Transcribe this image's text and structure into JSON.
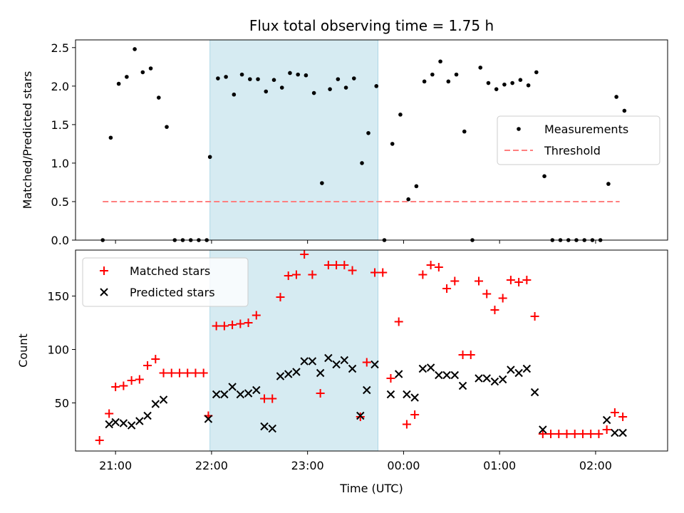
{
  "title": "Flux total observing time = 1.75 h",
  "colors": {
    "measurement": "#000000",
    "threshold": "#ff7f7f",
    "matched": "#ff0000",
    "predicted": "#000000",
    "shade": "#add8e6"
  },
  "chart_data": [
    {
      "type": "scatter",
      "ylabel": "Matched/Predicted stars",
      "xlabel": "",
      "ylim": [
        0,
        2.6
      ],
      "yticks": [
        "0.0",
        "0.5",
        "1.0",
        "1.5",
        "2.0",
        "2.5"
      ],
      "legend_placement": "center-right",
      "shaded_interval": [
        "21:59",
        "23:44"
      ],
      "threshold": {
        "name": "Threshold",
        "value": 0.5,
        "x_range": [
          "20:52",
          "02:15"
        ]
      },
      "series": [
        {
          "name": "Measurements",
          "marker": "dot",
          "points": [
            [
              "20:52",
              0.0
            ],
            [
              "20:57",
              1.33
            ],
            [
              "21:02",
              2.03
            ],
            [
              "21:07",
              2.12
            ],
            [
              "21:12",
              2.48
            ],
            [
              "21:17",
              2.18
            ],
            [
              "21:22",
              2.23
            ],
            [
              "21:27",
              1.85
            ],
            [
              "21:32",
              1.47
            ],
            [
              "21:37",
              0.0
            ],
            [
              "21:42",
              0.0
            ],
            [
              "21:47",
              0.0
            ],
            [
              "21:52",
              0.0
            ],
            [
              "21:57",
              0.0
            ],
            [
              "21:59",
              1.08
            ],
            [
              "22:04",
              2.1
            ],
            [
              "22:09",
              2.12
            ],
            [
              "22:14",
              1.89
            ],
            [
              "22:19",
              2.15
            ],
            [
              "22:24",
              2.09
            ],
            [
              "22:29",
              2.09
            ],
            [
              "22:34",
              1.93
            ],
            [
              "22:39",
              2.08
            ],
            [
              "22:44",
              1.98
            ],
            [
              "22:49",
              2.17
            ],
            [
              "22:54",
              2.15
            ],
            [
              "22:59",
              2.14
            ],
            [
              "23:04",
              1.91
            ],
            [
              "23:09",
              0.74
            ],
            [
              "23:14",
              1.96
            ],
            [
              "23:19",
              2.09
            ],
            [
              "23:24",
              1.98
            ],
            [
              "23:29",
              2.1
            ],
            [
              "23:34",
              1.0
            ],
            [
              "23:38",
              1.39
            ],
            [
              "23:43",
              2.0
            ],
            [
              "23:48",
              0.0
            ],
            [
              "23:53",
              1.25
            ],
            [
              "23:58",
              1.63
            ],
            [
              "00:03",
              0.53
            ],
            [
              "00:08",
              0.7
            ],
            [
              "00:13",
              2.06
            ],
            [
              "00:18",
              2.15
            ],
            [
              "00:23",
              2.32
            ],
            [
              "00:28",
              2.06
            ],
            [
              "00:33",
              2.15
            ],
            [
              "00:38",
              1.41
            ],
            [
              "00:43",
              0.0
            ],
            [
              "00:48",
              2.24
            ],
            [
              "00:53",
              2.04
            ],
            [
              "00:58",
              1.96
            ],
            [
              "01:03",
              2.02
            ],
            [
              "01:08",
              2.04
            ],
            [
              "01:13",
              2.08
            ],
            [
              "01:18",
              2.01
            ],
            [
              "01:23",
              2.18
            ],
            [
              "01:28",
              0.83
            ],
            [
              "01:33",
              0.0
            ],
            [
              "01:38",
              0.0
            ],
            [
              "01:43",
              0.0
            ],
            [
              "01:48",
              0.0
            ],
            [
              "01:53",
              0.0
            ],
            [
              "01:58",
              0.0
            ],
            [
              "02:03",
              0.0
            ],
            [
              "02:08",
              0.73
            ],
            [
              "02:13",
              1.86
            ],
            [
              "02:18",
              1.68
            ]
          ]
        }
      ]
    },
    {
      "type": "scatter",
      "ylabel": "Count",
      "xlabel": "Time (UTC)",
      "ylim": [
        5,
        193
      ],
      "yticks": [
        "50",
        "100",
        "150"
      ],
      "xticks": [
        "21:00",
        "22:00",
        "23:00",
        "00:00",
        "01:00",
        "02:00"
      ],
      "legend_placement": "upper-left",
      "shaded_interval": [
        "21:59",
        "23:44"
      ],
      "series": [
        {
          "name": "Matched stars",
          "marker": "plus",
          "points": [
            [
              "20:50",
              15
            ],
            [
              "20:56",
              40
            ],
            [
              "21:00",
              65
            ],
            [
              "21:05",
              66
            ],
            [
              "21:10",
              71
            ],
            [
              "21:15",
              72
            ],
            [
              "21:20",
              85
            ],
            [
              "21:25",
              91
            ],
            [
              "21:30",
              78
            ],
            [
              "21:35",
              78
            ],
            [
              "21:40",
              78
            ],
            [
              "21:45",
              78
            ],
            [
              "21:50",
              78
            ],
            [
              "21:55",
              78
            ],
            [
              "21:58",
              38
            ],
            [
              "22:03",
              122
            ],
            [
              "22:08",
              122
            ],
            [
              "22:13",
              123
            ],
            [
              "22:18",
              124
            ],
            [
              "22:23",
              125
            ],
            [
              "22:28",
              132
            ],
            [
              "22:33",
              54
            ],
            [
              "22:38",
              54
            ],
            [
              "22:43",
              149
            ],
            [
              "22:48",
              169
            ],
            [
              "22:53",
              170
            ],
            [
              "22:58",
              189
            ],
            [
              "23:03",
              170
            ],
            [
              "23:08",
              59
            ],
            [
              "23:13",
              179
            ],
            [
              "23:18",
              179
            ],
            [
              "23:23",
              179
            ],
            [
              "23:28",
              174
            ],
            [
              "23:33",
              37
            ],
            [
              "23:37",
              88
            ],
            [
              "23:42",
              172
            ],
            [
              "23:47",
              172
            ],
            [
              "23:52",
              73
            ],
            [
              "23:57",
              126
            ],
            [
              "00:02",
              30
            ],
            [
              "00:07",
              39
            ],
            [
              "00:12",
              170
            ],
            [
              "00:17",
              179
            ],
            [
              "00:22",
              177
            ],
            [
              "00:27",
              157
            ],
            [
              "00:32",
              164
            ],
            [
              "00:37",
              95
            ],
            [
              "00:42",
              95
            ],
            [
              "00:47",
              164
            ],
            [
              "00:52",
              152
            ],
            [
              "00:57",
              137
            ],
            [
              "01:02",
              148
            ],
            [
              "01:07",
              165
            ],
            [
              "01:12",
              163
            ],
            [
              "01:17",
              165
            ],
            [
              "01:22",
              131
            ],
            [
              "01:27",
              21
            ],
            [
              "01:32",
              21
            ],
            [
              "01:37",
              21
            ],
            [
              "01:42",
              21
            ],
            [
              "01:47",
              21
            ],
            [
              "01:52",
              21
            ],
            [
              "01:57",
              21
            ],
            [
              "02:02",
              21
            ],
            [
              "02:07",
              25
            ],
            [
              "02:12",
              41
            ],
            [
              "02:17",
              37
            ]
          ]
        },
        {
          "name": "Predicted stars",
          "marker": "x",
          "points": [
            [
              "20:56",
              30
            ],
            [
              "21:00",
              32
            ],
            [
              "21:05",
              31
            ],
            [
              "21:10",
              29
            ],
            [
              "21:15",
              33
            ],
            [
              "21:20",
              38
            ],
            [
              "21:25",
              49
            ],
            [
              "21:30",
              53
            ],
            [
              "21:58",
              35
            ],
            [
              "22:03",
              58
            ],
            [
              "22:08",
              58
            ],
            [
              "22:13",
              65
            ],
            [
              "22:18",
              58
            ],
            [
              "22:23",
              59
            ],
            [
              "22:28",
              62
            ],
            [
              "22:33",
              28
            ],
            [
              "22:38",
              26
            ],
            [
              "22:43",
              75
            ],
            [
              "22:48",
              77
            ],
            [
              "22:53",
              79
            ],
            [
              "22:58",
              89
            ],
            [
              "23:03",
              89
            ],
            [
              "23:08",
              78
            ],
            [
              "23:13",
              92
            ],
            [
              "23:18",
              86
            ],
            [
              "23:23",
              90
            ],
            [
              "23:28",
              82
            ],
            [
              "23:33",
              38
            ],
            [
              "23:37",
              62
            ],
            [
              "23:42",
              86
            ],
            [
              "23:52",
              58
            ],
            [
              "23:57",
              77
            ],
            [
              "00:02",
              58
            ],
            [
              "00:07",
              55
            ],
            [
              "00:12",
              82
            ],
            [
              "00:17",
              83
            ],
            [
              "00:22",
              76
            ],
            [
              "00:27",
              76
            ],
            [
              "00:32",
              76
            ],
            [
              "00:37",
              66
            ],
            [
              "00:47",
              73
            ],
            [
              "00:52",
              73
            ],
            [
              "00:57",
              70
            ],
            [
              "01:02",
              72
            ],
            [
              "01:07",
              81
            ],
            [
              "01:12",
              78
            ],
            [
              "01:17",
              82
            ],
            [
              "01:22",
              60
            ],
            [
              "01:27",
              25
            ],
            [
              "02:07",
              34
            ],
            [
              "02:12",
              22
            ],
            [
              "02:17",
              22
            ]
          ]
        }
      ]
    }
  ]
}
